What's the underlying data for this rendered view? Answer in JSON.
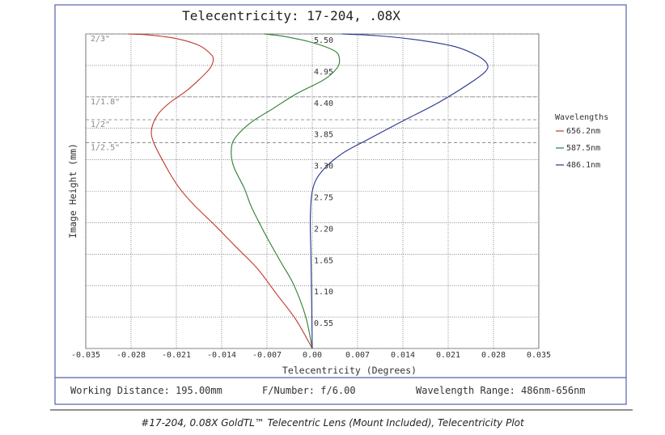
{
  "chart_data": {
    "type": "line",
    "title": "Telecentricity: 17-204, .08X",
    "xlabel": "Telecentricity (Degrees)",
    "ylabel": "Image Height (mm)",
    "xlim": [
      -0.035,
      0.035
    ],
    "ylim": [
      0,
      5.5
    ],
    "x_ticks": [
      "-0.035",
      "-0.028",
      "-0.021",
      "-0.014",
      "-0.007",
      "0.00",
      "0.007",
      "0.014",
      "0.021",
      "0.028",
      "0.035"
    ],
    "x_tick_values": [
      -0.035,
      -0.028,
      -0.021,
      -0.014,
      -0.007,
      0,
      0.007,
      0.014,
      0.021,
      0.028,
      0.035
    ],
    "y_ticks": [
      "0.55",
      "1.10",
      "1.65",
      "2.20",
      "2.75",
      "3.30",
      "3.85",
      "4.40",
      "4.95",
      "5.50"
    ],
    "y_tick_values": [
      0.55,
      1.1,
      1.65,
      2.2,
      2.75,
      3.3,
      3.85,
      4.4,
      4.95,
      5.5
    ],
    "legend_title": "Wavelengths",
    "series": [
      {
        "name": "656.2nm",
        "color": "#c0392b",
        "x": [
          0,
          -0.0025,
          -0.0055,
          -0.0085,
          -0.012,
          -0.015,
          -0.0182,
          -0.0205,
          -0.0222,
          -0.0245,
          -0.0248,
          -0.0238,
          -0.022,
          -0.0195,
          -0.0175,
          -0.0158,
          -0.0153,
          -0.0157,
          -0.0175,
          -0.021,
          -0.025,
          -0.0285
        ],
        "y": [
          0,
          0.5,
          0.95,
          1.4,
          1.8,
          2.15,
          2.5,
          2.8,
          3.1,
          3.6,
          3.85,
          4.1,
          4.3,
          4.5,
          4.7,
          4.9,
          5.05,
          5.15,
          5.3,
          5.42,
          5.48,
          5.5
        ]
      },
      {
        "name": "587.5nm",
        "color": "#2e7d32",
        "x": [
          0,
          -0.001,
          -0.0028,
          -0.0048,
          -0.0068,
          -0.0082,
          -0.0095,
          -0.0105,
          -0.0122,
          -0.0125,
          -0.0118,
          -0.0095,
          -0.006,
          -0.0025,
          0.0018,
          0.0038,
          0.0042,
          0.0035,
          0.0,
          -0.0045,
          -0.0075
        ],
        "y": [
          0,
          0.55,
          1.1,
          1.5,
          1.9,
          2.2,
          2.5,
          2.8,
          3.2,
          3.5,
          3.7,
          3.95,
          4.2,
          4.45,
          4.7,
          4.9,
          5.05,
          5.2,
          5.35,
          5.46,
          5.5
        ]
      },
      {
        "name": "486.1nm",
        "color": "#283593",
        "x": [
          0,
          -0.0001,
          -0.0002,
          -0.0003,
          0.0001,
          0.0015,
          0.0045,
          0.0085,
          0.0135,
          0.0195,
          0.0245,
          0.0268,
          0.027,
          0.0255,
          0.022,
          0.016,
          0.01,
          0.0045
        ],
        "y": [
          0,
          0.8,
          1.6,
          2.3,
          2.8,
          3.1,
          3.4,
          3.65,
          3.95,
          4.3,
          4.65,
          4.85,
          4.98,
          5.12,
          5.28,
          5.4,
          5.47,
          5.5
        ]
      }
    ],
    "field_markers": [
      {
        "label": "2/3\"",
        "y": 5.5
      },
      {
        "label": "1/1.8\"",
        "y": 4.4
      },
      {
        "label": "1/2\"",
        "y": 4.0
      },
      {
        "label": "1/2.5\"",
        "y": 3.6
      }
    ]
  },
  "footer": {
    "working_distance": "Working Distance: 195.00mm",
    "f_number": "F/Number: f/6.00",
    "wavelength_range": "Wavelength Range: 486nm-656nm"
  },
  "caption": "#17-204, 0.08X GoldTL™ Telecentric Lens (Mount Included), Telecentricity Plot"
}
